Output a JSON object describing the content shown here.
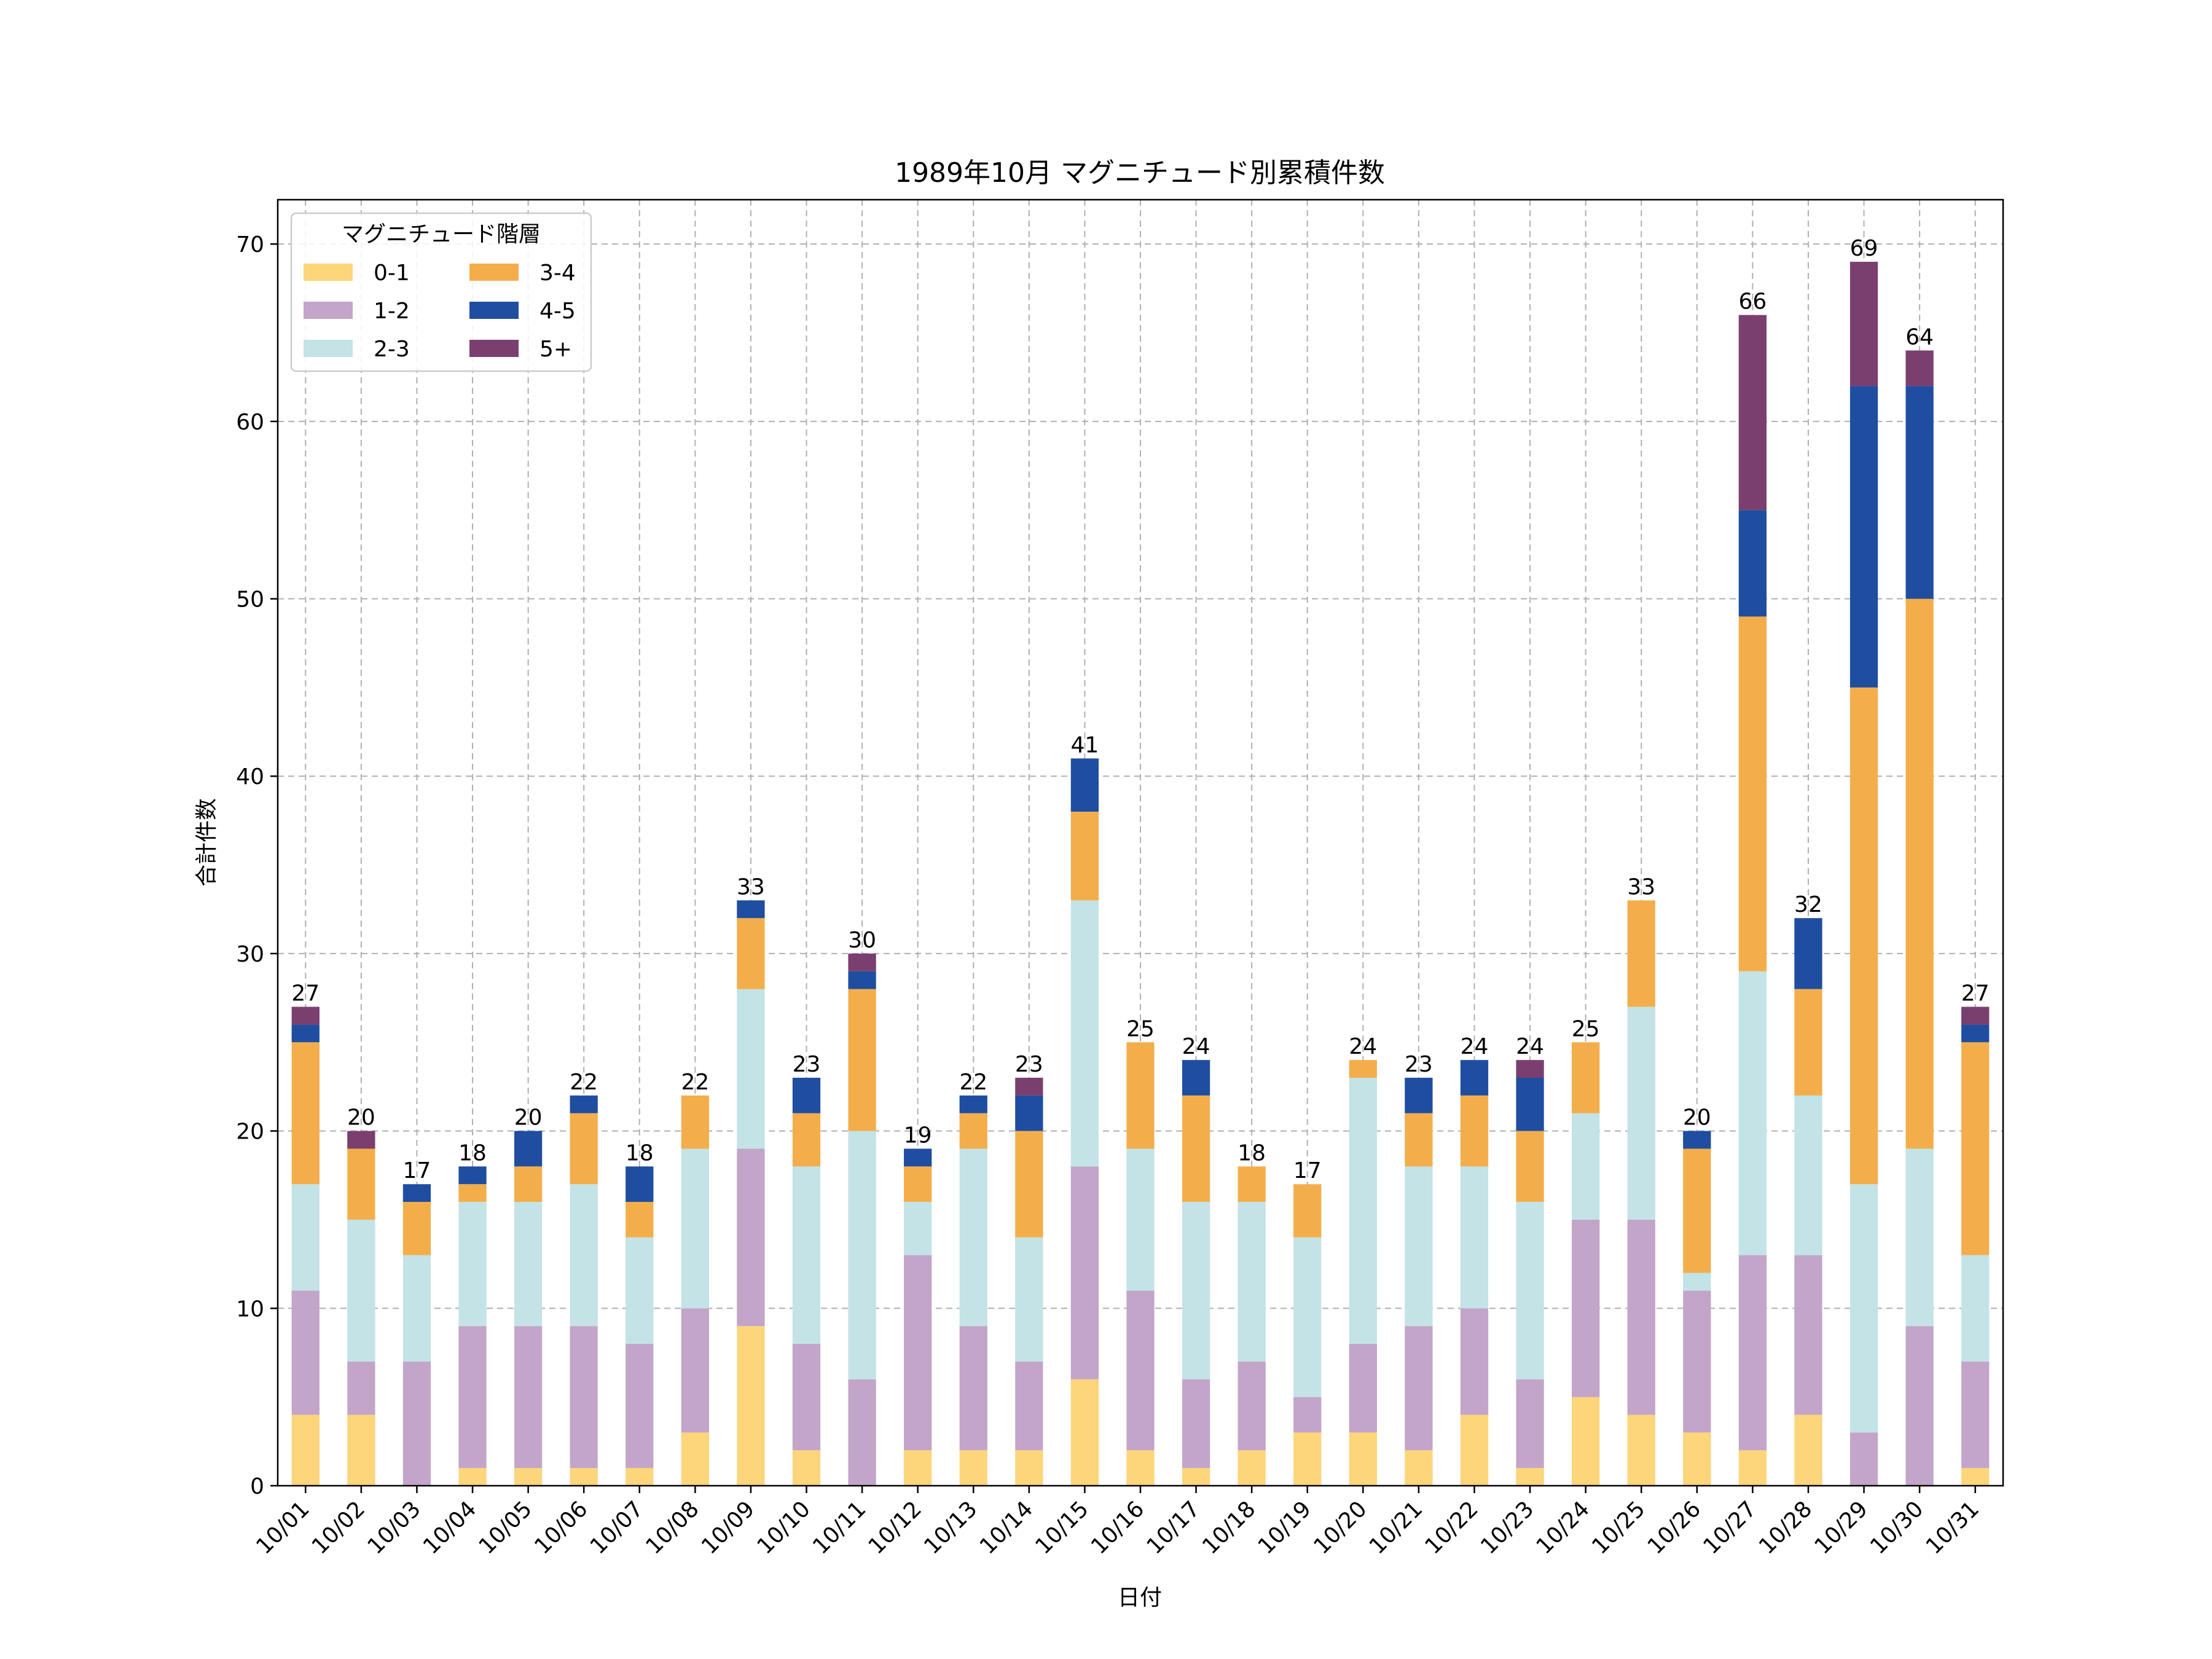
{
  "chart_data": {
    "type": "bar",
    "stacked": true,
    "title": "1989年10月 マグニチュード別累積件数",
    "xlabel": "日付",
    "ylabel": "合計件数",
    "ylim": [
      0,
      72.5
    ],
    "yticks": [
      0,
      10,
      20,
      30,
      40,
      50,
      60,
      70
    ],
    "grid": true,
    "legend": {
      "title": "マグニチュード階層",
      "placement": "top-left",
      "columns": 2
    },
    "categories": [
      "10/01",
      "10/02",
      "10/03",
      "10/04",
      "10/05",
      "10/06",
      "10/07",
      "10/08",
      "10/09",
      "10/10",
      "10/11",
      "10/12",
      "10/13",
      "10/14",
      "10/15",
      "10/16",
      "10/17",
      "10/18",
      "10/19",
      "10/20",
      "10/21",
      "10/22",
      "10/23",
      "10/24",
      "10/25",
      "10/26",
      "10/27",
      "10/28",
      "10/29",
      "10/30",
      "10/31"
    ],
    "series": [
      {
        "name": "0-1",
        "color": "#fdd57a",
        "values": [
          4,
          4,
          0,
          1,
          1,
          1,
          1,
          3,
          9,
          2,
          0,
          2,
          2,
          2,
          6,
          2,
          1,
          2,
          3,
          3,
          2,
          4,
          1,
          5,
          4,
          3,
          2,
          4,
          0,
          0,
          1
        ]
      },
      {
        "name": "1-2",
        "color": "#c2a5c9",
        "values": [
          7,
          3,
          7,
          8,
          8,
          8,
          7,
          7,
          10,
          6,
          6,
          11,
          7,
          5,
          12,
          9,
          5,
          5,
          2,
          5,
          7,
          6,
          5,
          10,
          11,
          8,
          11,
          9,
          3,
          9,
          6
        ]
      },
      {
        "name": "2-3",
        "color": "#c3e3e6",
        "values": [
          6,
          8,
          6,
          7,
          7,
          8,
          6,
          9,
          9,
          10,
          14,
          3,
          10,
          7,
          15,
          8,
          10,
          9,
          9,
          15,
          9,
          8,
          10,
          6,
          12,
          1,
          16,
          9,
          14,
          10,
          6
        ]
      },
      {
        "name": "3-4",
        "color": "#f3ae4b",
        "values": [
          8,
          4,
          3,
          1,
          2,
          4,
          2,
          3,
          4,
          3,
          8,
          2,
          2,
          6,
          5,
          6,
          6,
          2,
          3,
          1,
          3,
          4,
          4,
          4,
          6,
          7,
          20,
          6,
          28,
          31,
          12
        ]
      },
      {
        "name": "4-5",
        "color": "#1f4ea1",
        "values": [
          1,
          0,
          1,
          1,
          2,
          1,
          2,
          0,
          1,
          2,
          1,
          1,
          1,
          2,
          3,
          0,
          2,
          0,
          0,
          0,
          2,
          2,
          3,
          0,
          0,
          1,
          6,
          4,
          17,
          12,
          1
        ]
      },
      {
        "name": "5+",
        "color": "#7b3f6f",
        "values": [
          1,
          1,
          0,
          0,
          0,
          0,
          0,
          0,
          0,
          0,
          1,
          0,
          0,
          1,
          0,
          0,
          0,
          0,
          0,
          0,
          0,
          0,
          1,
          0,
          0,
          0,
          11,
          0,
          7,
          2,
          1
        ]
      }
    ],
    "totals": [
      27,
      20,
      17,
      18,
      20,
      22,
      18,
      22,
      33,
      23,
      30,
      19,
      22,
      23,
      41,
      25,
      24,
      18,
      17,
      24,
      23,
      24,
      24,
      25,
      33,
      20,
      66,
      32,
      69,
      64,
      27
    ]
  }
}
